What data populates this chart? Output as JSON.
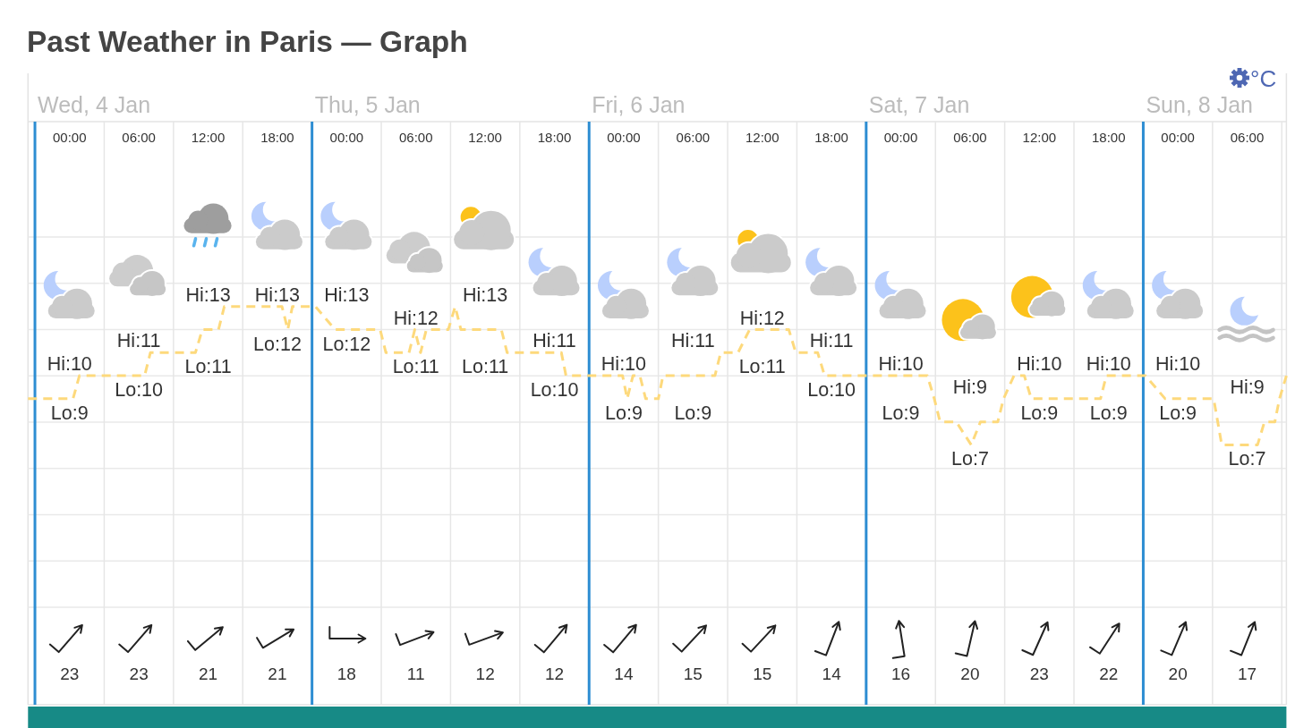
{
  "chart_data": {
    "type": "line",
    "title": "Past Weather in Paris — Graph",
    "x": [
      "--01-03T20:24",
      "--01-04T00:18",
      "--01-04T00:51",
      "--01-04T06:30",
      "--01-04T07:00",
      "--01-04T10:54",
      "--01-04T11:30",
      "--01-04T12:54",
      "--01-04T13:24",
      "--01-04T18:24",
      "--01-04T18:54",
      "--01-04T19:18",
      "--01-04T21:18",
      "--01-04T23:00",
      "--01-05T02:54",
      "--01-05T03:24",
      "--01-05T05:24",
      "--01-05T05:54",
      "--01-05T06:24",
      "--01-05T06:54",
      "--01-05T08:48",
      "--01-05T09:24",
      "--01-05T09:54",
      "--01-05T13:24",
      "--01-05T13:54",
      "--01-05T18:36",
      "--01-05T19:00",
      "--01-05T23:54",
      "--01-06T00:18",
      "--01-06T00:48",
      "--01-06T01:24",
      "--01-06T01:54",
      "--01-06T03:00",
      "--01-06T03:24",
      "--01-06T07:54",
      "--01-06T08:24",
      "--01-06T09:54",
      "--01-06T10:54",
      "--01-06T14:18",
      "--01-06T14:54",
      "--01-06T16:48",
      "--01-06T17:24",
      "--01-07T02:18",
      "--01-07T02:54",
      "--01-07T03:24",
      "--01-07T04:48",
      "--01-07T06:06",
      "--01-07T06:54",
      "--01-07T08:24",
      "--01-07T08:54",
      "--01-07T09:48",
      "--01-07T10:42",
      "--01-07T11:18",
      "--01-07T17:18",
      "--01-07T17:48",
      "--01-07T21:12",
      "--01-07T22:54",
      "--01-08T03:06",
      "--01-08T03:48",
      "--01-08T06:54",
      "--01-08T07:30",
      "--01-08T08:24",
      "--01-08T08:48",
      "--01-08T09:24"
    ],
    "values": [
      9,
      9,
      10,
      10,
      11,
      11,
      12,
      12,
      13,
      13,
      12,
      13,
      13,
      12,
      12,
      11,
      11,
      12,
      11,
      12,
      12,
      13,
      12,
      12,
      11,
      11,
      10,
      10,
      9,
      10,
      10,
      9,
      9,
      10,
      10,
      11,
      11,
      12,
      12,
      11,
      11,
      10,
      10,
      9,
      8,
      8,
      7,
      8,
      8,
      9,
      10,
      10,
      9,
      9,
      10,
      10,
      9,
      9,
      7,
      7,
      8,
      8,
      9,
      10
    ],
    "value_labels": [
      null,
      "Lo:9",
      "Hi:10",
      "Lo:10",
      "Hi:11",
      "Lo:11",
      null,
      null,
      "Hi:13",
      "Hi:13",
      "Lo:12",
      null,
      "Hi:13",
      "Lo:12",
      null,
      null,
      null,
      "Hi:12",
      "Lo:11",
      null,
      null,
      "Hi:13",
      null,
      null,
      "Lo:11",
      "Hi:11",
      "Lo:10",
      "Hi:10",
      "Lo:9",
      null,
      null,
      null,
      "Lo:9",
      null,
      null,
      "Hi:11",
      "Lo:11",
      "Hi:12",
      null,
      null,
      "Hi:11",
      "Lo:10",
      "Hi:10",
      "Lo:9",
      null,
      null,
      "Lo:7",
      null,
      null,
      "Hi:9",
      null,
      "Hi:10",
      "Lo:9",
      "Lo:9",
      "Hi:10",
      "Hi:10",
      "Lo:9",
      null,
      null,
      "Lo:7",
      null,
      null,
      "Hi:9",
      null
    ],
    "color": "#fdd97c",
    "line_style": "dashed",
    "xlim": [
      "--01-03T20:24",
      "--01-08T09:24"
    ],
    "xticks": [
      {
        "value": "--01-04T00:00",
        "label": "00:00"
      },
      {
        "value": "--01-04T03:00",
        "label": null
      },
      {
        "value": "--01-04T06:00",
        "label": "06:00"
      },
      {
        "value": "--01-04T09:00",
        "label": null
      },
      {
        "value": "--01-04T12:00",
        "label": "12:00"
      },
      {
        "value": "--01-04T15:00",
        "label": null
      },
      {
        "value": "--01-04T18:00",
        "label": "18:00"
      },
      {
        "value": "--01-05T00:00",
        "label": "00:00"
      },
      {
        "value": "--01-05T03:00",
        "label": null
      },
      {
        "value": "--01-05T06:00",
        "label": "06:00"
      },
      {
        "value": "--01-05T09:00",
        "label": null
      },
      {
        "value": "--01-05T12:00",
        "label": "12:00"
      },
      {
        "value": "--01-05T15:00",
        "label": null
      },
      {
        "value": "--01-05T18:00",
        "label": "18:00"
      },
      {
        "value": "--01-06T00:00",
        "label": "00:00"
      },
      {
        "value": "--01-06T03:00",
        "label": null
      },
      {
        "value": "--01-06T06:00",
        "label": "06:00"
      },
      {
        "value": "--01-06T09:00",
        "label": null
      },
      {
        "value": "--01-06T12:00",
        "label": "12:00"
      },
      {
        "value": "--01-06T15:00",
        "label": null
      },
      {
        "value": "--01-06T18:00",
        "label": "18:00"
      },
      {
        "value": "--01-07T00:00",
        "label": "00:00"
      },
      {
        "value": "--01-07T03:00",
        "label": null
      },
      {
        "value": "--01-07T06:00",
        "label": "06:00"
      },
      {
        "value": "--01-07T09:00",
        "label": null
      },
      {
        "value": "--01-07T12:00",
        "label": "12:00"
      },
      {
        "value": "--01-07T15:00",
        "label": null
      },
      {
        "value": "--01-07T18:00",
        "label": "18:00"
      },
      {
        "value": "--01-08T00:00",
        "label": "00:00"
      },
      {
        "value": "--01-08T03:00",
        "label": null
      },
      {
        "value": "--01-08T06:00",
        "label": "06:00"
      },
      {
        "value": "--01-08T09:00",
        "label": null
      }
    ],
    "grid": true,
    "ref_lines": [
      {
        "axis": "x",
        "value": "--01-03T21:00",
        "label": "Wed, 4 Jan",
        "color": "#2d8dd2"
      },
      {
        "axis": "x",
        "value": "--01-04T21:00",
        "label": "Thu, 5 Jan",
        "color": "#2d8dd2"
      },
      {
        "axis": "x",
        "value": "--01-05T21:00",
        "label": "Fri, 6 Jan",
        "color": "#2d8dd2"
      },
      {
        "axis": "x",
        "value": "--01-06T21:00",
        "label": "Sat, 7 Jan",
        "color": "#2d8dd2"
      },
      {
        "axis": "x",
        "value": "--01-07T21:00",
        "label": "Sun, 8 Jan",
        "color": "#2d8dd2"
      }
    ],
    "annotations": [
      "°C",
      "23",
      "23",
      "21",
      "21",
      "18",
      "11",
      "12",
      "12",
      "14",
      "15",
      "15",
      "14",
      "16",
      "20",
      "23",
      "22",
      "20",
      "17"
    ]
  }
}
